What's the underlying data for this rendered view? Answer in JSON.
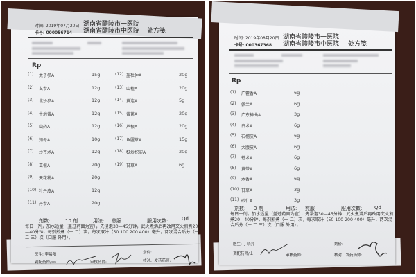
{
  "prescriptions": [
    {
      "date": "时间: 2019年07月20日",
      "card": "卡号: 000056714",
      "hospital_1": "湖南省醴陵市一医院",
      "hospital_2": "湖南省醴陵市中医院",
      "form_title": "处方笺",
      "rp": "Rp",
      "items": [
        {
          "n": "(1)",
          "name": "太子参A",
          "dose": "15g"
        },
        {
          "n": "(2)",
          "name": "玄参A",
          "dose": "12g"
        },
        {
          "n": "(3)",
          "name": "北沙参A",
          "dose": "12g"
        },
        {
          "n": "(4)",
          "name": "生地黄A",
          "dose": "12g"
        },
        {
          "n": "(5)",
          "name": "山药A",
          "dose": "12g"
        },
        {
          "n": "(6)",
          "name": "知母A",
          "dose": "10g"
        },
        {
          "n": "(7)",
          "name": "炒苍术A",
          "dose": "12g"
        },
        {
          "n": "(8)",
          "name": "葛根A",
          "dose": "20g"
        },
        {
          "n": "(9)",
          "name": "天花粉A",
          "dose": "20g"
        },
        {
          "n": "(10)",
          "name": "牡丹皮A",
          "dose": "12g"
        },
        {
          "n": "(11)",
          "name": "丹参A",
          "dose": "20g"
        },
        {
          "n": "(12)",
          "name": "盐杜仲A",
          "dose": "20g"
        },
        {
          "n": "(13)",
          "name": "山楂A",
          "dose": "20g"
        },
        {
          "n": "(14)",
          "name": "黄连A",
          "dose": "5g"
        },
        {
          "n": "(15)",
          "name": "黄芪A",
          "dose": "20g"
        },
        {
          "n": "(16)",
          "name": "芦根A",
          "dose": "20g"
        },
        {
          "n": "(17)",
          "name": "鱼腥草A",
          "dose": "15g"
        },
        {
          "n": "(18)",
          "name": "麸炒枳实A",
          "dose": "20g"
        },
        {
          "n": "(19)",
          "name": "甘草A",
          "dose": "6g"
        }
      ],
      "doses_label": "剂数:",
      "doses_value": "10 剂",
      "usage_label": "用法:",
      "usage_value": "煎服",
      "freq_label": "服用次数:",
      "freq_value": "Qd",
      "instructions": "每日一剂，加水适量（盖过药面为宜），先浸泡30—45分钟，武火煮沸后再改用文火煎煮20—40分钟，每剂煎煮（一 二）次，每次取汁（50 100 200 400）毫升，两次混合后分（一 二 三）次（口服 外用）。",
      "doctor": "医生: 李晨阳",
      "fee": "划价:",
      "dispenser": "调配药师/士:",
      "reviewer": "审核药师:",
      "checker": "核对、发药药师:"
    },
    {
      "date": "时间: 2019年08月20日",
      "card": "卡号: 000367368",
      "hospital_1": "湖南省醴陵市一医院",
      "hospital_2": "湖南省醴陵市中医院",
      "form_title": "处方笺",
      "rp": "Rp",
      "items": [
        {
          "n": "(1)",
          "name": "广藿香A",
          "dose": "6g"
        },
        {
          "n": "(2)",
          "name": "佩兰A",
          "dose": "6g"
        },
        {
          "n": "(3)",
          "name": "广东神曲A",
          "dose": "3g"
        },
        {
          "n": "(4)",
          "name": "白术A",
          "dose": "6g"
        },
        {
          "n": "(5)",
          "name": "石榴皮A",
          "dose": "6g"
        },
        {
          "n": "(6)",
          "name": "大腹皮A",
          "dose": "6g"
        },
        {
          "n": "(7)",
          "name": "苍术A",
          "dose": "6g"
        },
        {
          "n": "(8)",
          "name": "黄芩A",
          "dose": "6g"
        },
        {
          "n": "(9)",
          "name": "木香A",
          "dose": "6g"
        },
        {
          "n": "(10)",
          "name": "甘草A",
          "dose": "3g"
        },
        {
          "n": "(11)",
          "name": "砂仁A",
          "dose": "3g"
        }
      ],
      "doses_label": "剂数:",
      "doses_value": "3 剂",
      "usage_label": "用法:",
      "usage_value": "煎服",
      "freq_label": "服用次数:",
      "freq_value": "Qd",
      "instructions": "每日一剂，加水适量（盖过药面为宜），先浸泡30—45分钟，武火煮沸后再改用文火煎煮20—40分钟，每剂煎煮（一 二）次，每次取汁（50 100 200 400）毫升，两次混合后分（一 二 三）次（口服 外用）。",
      "doctor": "医生: 丁晓亮",
      "fee": "划价:",
      "dispenser": "调配药师/士:",
      "reviewer": "审核药师:",
      "checker": "核对、发药药师:"
    }
  ]
}
